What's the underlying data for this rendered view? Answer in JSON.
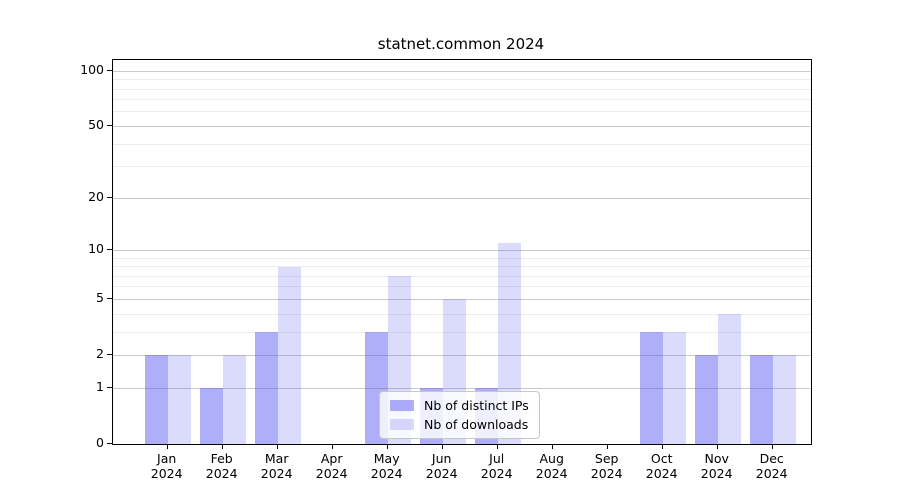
{
  "chart_data": {
    "type": "bar",
    "title": "statnet.common 2024",
    "categories": [
      "Jan",
      "Feb",
      "Mar",
      "Apr",
      "May",
      "Jun",
      "Jul",
      "Aug",
      "Sep",
      "Oct",
      "Nov",
      "Dec"
    ],
    "year_label": "2024",
    "series": [
      {
        "name": "Nb of distinct IPs",
        "color": "#5555F27A",
        "values": [
          2,
          1,
          3,
          0,
          3,
          1,
          1,
          0,
          0,
          3,
          2,
          2
        ]
      },
      {
        "name": "Nb of downloads",
        "color": "#5555F236",
        "values": [
          2,
          2,
          8,
          0,
          7,
          5,
          11,
          0,
          0,
          3,
          4,
          2
        ]
      }
    ],
    "yscale": "log1p",
    "ylim": [
      0,
      115
    ],
    "yticks": [
      0,
      1,
      2,
      5,
      10,
      20,
      50,
      100
    ],
    "minor_yticks": [
      3,
      4,
      6,
      7,
      8,
      9,
      30,
      40,
      60,
      70,
      80,
      90
    ],
    "grid": true,
    "legend_position": "lower center"
  }
}
